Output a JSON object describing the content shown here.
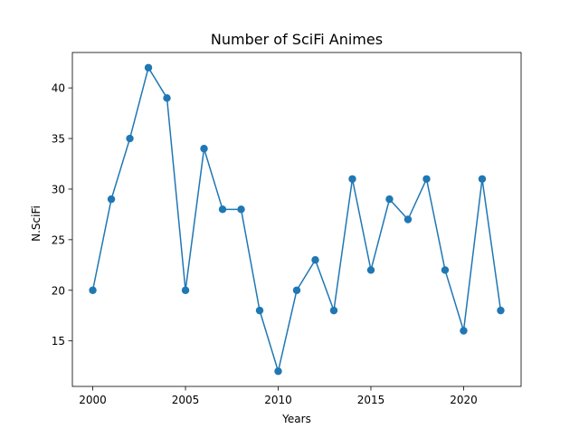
{
  "chart_data": {
    "type": "line",
    "title": "Number of SciFi Animes",
    "xlabel": "Years",
    "ylabel": "N.SciFi",
    "x": [
      2000,
      2001,
      2002,
      2003,
      2004,
      2005,
      2006,
      2007,
      2008,
      2009,
      2010,
      2011,
      2012,
      2013,
      2014,
      2015,
      2016,
      2017,
      2018,
      2019,
      2020,
      2021,
      2022
    ],
    "series": [
      {
        "values": [
          20,
          29,
          35,
          42,
          39,
          20,
          34,
          28,
          28,
          18,
          12,
          20,
          23,
          18,
          31,
          22,
          29,
          27,
          31,
          22,
          16,
          31,
          18
        ],
        "color": "#1f77b4",
        "marker": "circle"
      }
    ],
    "xlim": [
      1998.9,
      2023.1
    ],
    "ylim": [
      10.5,
      43.5
    ],
    "xticks": [
      2000,
      2005,
      2010,
      2015,
      2020
    ],
    "yticks": [
      15,
      20,
      25,
      30,
      35,
      40
    ],
    "grid": false,
    "legend": "none"
  }
}
